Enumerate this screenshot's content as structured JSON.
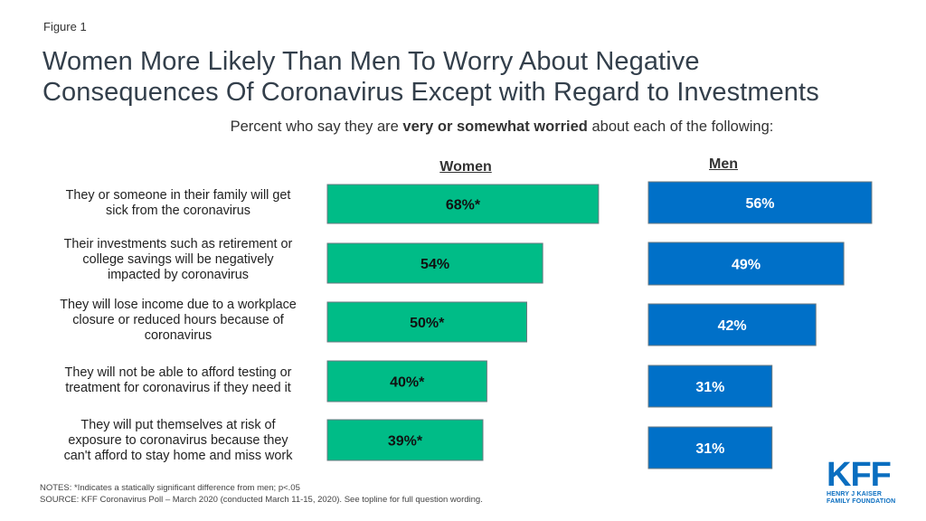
{
  "figure_label": "Figure 1",
  "title_line1": "Women More Likely Than Men To Worry About Negative",
  "title_line2": "Consequences Of Coronavirus Except with Regard to Investments",
  "subtitle_pre": "Percent who say they are ",
  "subtitle_bold": "very or somewhat worried",
  "subtitle_post": " about each of the following:",
  "notes": "NOTES: *Indicates a statically significant difference  from men;  p<.05",
  "source": "SOURCE: KFF Coronavirus  Poll – March 2020 (conducted March 11-15, 2020). See topline for full question wording.",
  "logo": {
    "main": "KFF",
    "line1": "HENRY J KAISER",
    "line2": "FAMILY FOUNDATION"
  },
  "colors": {
    "women": "#00BC87",
    "men": "#0070C8",
    "women_label": "#111111",
    "men_label": "#ffffff"
  },
  "chart_data": {
    "type": "bar",
    "orientation": "horizontal",
    "title": "Women More Likely Than Men To Worry About Negative Consequences Of Coronavirus Except with Regard to Investments",
    "subtitle": "Percent who say they are very or somewhat worried about each of the following:",
    "categories": [
      "They or someone in their family will get sick from the coronavirus",
      "Their investments such as retirement or college savings will be negatively impacted by coronavirus",
      "They will lose income due to a workplace closure or reduced hours because of coronavirus",
      "They will not be able to afford testing or treatment for coronavirus if they need it",
      "They will put themselves at risk of exposure to coronavirus because they can't afford to stay home and miss work"
    ],
    "category_lines": [
      [
        "They or someone in their family will get",
        "sick from the coronavirus"
      ],
      [
        "Their investments such as retirement or",
        "college savings will be negatively",
        "impacted by coronavirus"
      ],
      [
        "They will lose income due to a workplace",
        "closure or reduced hours because of",
        "coronavirus"
      ],
      [
        "They will not be able to afford testing or",
        "treatment for coronavirus if they need it"
      ],
      [
        "They will put themselves at risk of",
        "exposure to coronavirus because they",
        "can't afford to stay home and miss work"
      ]
    ],
    "series": [
      {
        "name": "Women",
        "values": [
          68,
          54,
          50,
          40,
          39
        ],
        "labels": [
          "68%*",
          "54%",
          "50%*",
          "40%*",
          "39%*"
        ]
      },
      {
        "name": "Men",
        "values": [
          56,
          49,
          42,
          31,
          31
        ],
        "labels": [
          "56%",
          "49%",
          "42%",
          "31%",
          "31%"
        ]
      }
    ],
    "unit": "%",
    "xlim": [
      0,
      100
    ],
    "grid": false,
    "legend": "none"
  }
}
